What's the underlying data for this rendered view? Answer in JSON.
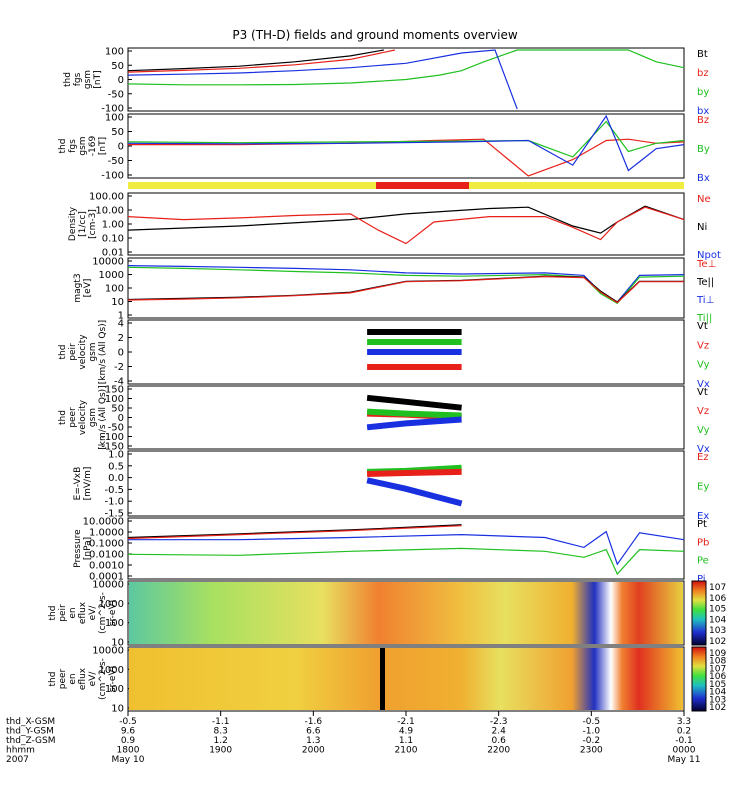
{
  "title": "P3 (TH-D) fields and ground moments overview",
  "colors": {
    "black": "#000000",
    "red": "#e8201a",
    "green": "#20c020",
    "blue": "#1830e0",
    "yellow": "#f0ec40"
  },
  "chart_data": [
    {
      "id": "fgs",
      "type": "line",
      "ylabel": [
        "thd",
        "fgs",
        "gsm",
        "[nT]"
      ],
      "yticks": [
        "100",
        "50",
        "0",
        "-50",
        "-100"
      ],
      "ylim": [
        -100,
        100
      ],
      "legend": [
        {
          "label": "Bt",
          "color": "black"
        },
        {
          "label": "bz",
          "color": "red"
        },
        {
          "label": "by",
          "color": "green"
        },
        {
          "label": "bx",
          "color": "blue"
        }
      ],
      "series": [
        {
          "name": "Bt",
          "color": "black",
          "x": [
            0,
            0.1,
            0.2,
            0.3,
            0.4,
            0.46
          ],
          "y": [
            30,
            37,
            45,
            60,
            80,
            100
          ]
        },
        {
          "name": "bz",
          "color": "red",
          "x": [
            0,
            0.1,
            0.2,
            0.3,
            0.4,
            0.48
          ],
          "y": [
            25,
            31,
            38,
            50,
            68,
            100
          ]
        },
        {
          "name": "by",
          "color": "green",
          "x": [
            0,
            0.1,
            0.2,
            0.3,
            0.4,
            0.5,
            0.56,
            0.6,
            0.64,
            0.7,
            0.75,
            0.8,
            0.9,
            0.95,
            1.0
          ],
          "y": [
            -15,
            -18,
            -18,
            -17,
            -12,
            0,
            15,
            30,
            60,
            100,
            100,
            100,
            100,
            60,
            40
          ]
        },
        {
          "name": "bx",
          "color": "blue",
          "x": [
            0,
            0.1,
            0.2,
            0.3,
            0.4,
            0.5,
            0.6,
            0.66,
            0.7
          ],
          "y": [
            15,
            18,
            22,
            30,
            40,
            55,
            90,
            100,
            -100
          ]
        }
      ]
    },
    {
      "id": "fgs169",
      "type": "line",
      "ylabel": [
        "thd",
        "fgs",
        "gsm",
        "-169",
        "[nT]"
      ],
      "yticks": [
        "100",
        "50",
        "0",
        "-50",
        "-100"
      ],
      "ylim": [
        -120,
        100
      ],
      "legend": [
        {
          "label": "Bz",
          "color": "red"
        },
        {
          "label": "By",
          "color": "green"
        },
        {
          "label": "Bx",
          "color": "blue"
        }
      ],
      "series": [
        {
          "name": "Bz",
          "color": "red",
          "x": [
            0,
            0.2,
            0.4,
            0.55,
            0.64,
            0.72,
            0.8,
            0.86,
            0.9,
            0.95,
            1.0
          ],
          "y": [
            -5,
            -5,
            0,
            10,
            15,
            -120,
            -60,
            10,
            15,
            0,
            5
          ]
        },
        {
          "name": "By",
          "color": "green",
          "x": [
            0,
            0.2,
            0.4,
            0.6,
            0.72,
            0.8,
            0.86,
            0.9,
            0.95,
            1.0
          ],
          "y": [
            5,
            2,
            5,
            8,
            10,
            -50,
            80,
            -30,
            0,
            10
          ]
        },
        {
          "name": "Bx",
          "color": "blue",
          "x": [
            0,
            0.2,
            0.4,
            0.6,
            0.72,
            0.8,
            0.86,
            0.9,
            0.95,
            1.0
          ],
          "y": [
            0,
            -2,
            0,
            5,
            10,
            -80,
            100,
            -100,
            -20,
            -5
          ]
        }
      ]
    },
    {
      "id": "density",
      "type": "line",
      "log": true,
      "ylabel": [
        "Density",
        "[1/cc]",
        "[cm-3]"
      ],
      "yticks": [
        "100.00",
        "10.00",
        "1.00",
        "0.10",
        "0.01"
      ],
      "ylim": [
        0.01,
        200
      ],
      "legend": [
        {
          "label": "Ne",
          "color": "red"
        },
        {
          "label": "Ni",
          "color": "black"
        },
        {
          "label": "Npot",
          "color": "blue"
        }
      ],
      "series": [
        {
          "name": "Ni",
          "color": "black",
          "x": [
            0,
            0.2,
            0.4,
            0.5,
            0.65,
            0.72,
            0.8,
            0.85,
            0.88,
            0.93,
            1.0
          ],
          "y": [
            0.5,
            1.0,
            3,
            8,
            20,
            25,
            1.0,
            0.3,
            2,
            30,
            3
          ]
        },
        {
          "name": "Ne",
          "color": "red",
          "x": [
            0,
            0.1,
            0.2,
            0.3,
            0.4,
            0.45,
            0.5,
            0.55,
            0.65,
            0.75,
            0.8,
            0.85,
            0.88,
            0.93,
            1.0
          ],
          "y": [
            5,
            3,
            4,
            6,
            8,
            0.5,
            0.05,
            2,
            5,
            5,
            0.8,
            0.1,
            2,
            25,
            3
          ]
        }
      ]
    },
    {
      "id": "temp",
      "type": "line",
      "log": true,
      "ylabel": [
        "magt3",
        "[eV]"
      ],
      "yticks": [
        "10000",
        "1000",
        "100",
        "10",
        "1"
      ],
      "ylim": [
        1,
        10000
      ],
      "legend": [
        {
          "label": "Te⊥",
          "color": "red"
        },
        {
          "label": "Te||",
          "color": "black"
        },
        {
          "label": "Ti⊥",
          "color": "blue"
        },
        {
          "label": "Ti||",
          "color": "green"
        }
      ],
      "series": [
        {
          "name": "Ti⊥",
          "color": "blue",
          "x": [
            0,
            0.1,
            0.2,
            0.3,
            0.4,
            0.5,
            0.6,
            0.75,
            0.82,
            0.85,
            0.88,
            0.92,
            1.0
          ],
          "y": [
            4000,
            3500,
            3000,
            2500,
            2000,
            1200,
            1000,
            1200,
            800,
            50,
            10,
            800,
            900
          ]
        },
        {
          "name": "Ti||",
          "color": "green",
          "x": [
            0,
            0.1,
            0.2,
            0.3,
            0.4,
            0.5,
            0.6,
            0.75,
            0.82,
            0.85,
            0.88,
            0.92,
            1.0
          ],
          "y": [
            3000,
            2500,
            2000,
            1500,
            1200,
            800,
            700,
            900,
            600,
            40,
            8,
            600,
            700
          ]
        },
        {
          "name": "Te||",
          "color": "black",
          "x": [
            0,
            0.1,
            0.2,
            0.3,
            0.4,
            0.5,
            0.6,
            0.75,
            0.82,
            0.85,
            0.88,
            0.92,
            1.0
          ],
          "y": [
            15,
            18,
            22,
            30,
            50,
            300,
            350,
            700,
            600,
            60,
            10,
            300,
            300
          ]
        },
        {
          "name": "Te⊥",
          "color": "red",
          "x": [
            0,
            0.1,
            0.2,
            0.3,
            0.4,
            0.5,
            0.6,
            0.75,
            0.82,
            0.85,
            0.88,
            0.92,
            1.0
          ],
          "y": [
            14,
            16,
            20,
            28,
            45,
            280,
            330,
            650,
            550,
            50,
            9,
            280,
            280
          ]
        }
      ]
    },
    {
      "id": "peir",
      "type": "line",
      "ylabel": [
        "thd",
        "peir",
        "velocity",
        "gsm",
        "[km/s (All Qs)]"
      ],
      "yticks": [
        "4",
        "2",
        "0",
        "-2",
        "-4"
      ],
      "ylim": [
        -6,
        6
      ],
      "legend": [
        {
          "label": "Vt",
          "color": "black"
        },
        {
          "label": "Vz",
          "color": "red"
        },
        {
          "label": "Vy",
          "color": "green"
        },
        {
          "label": "Vx",
          "color": "blue"
        }
      ],
      "series": [
        {
          "name": "Vt",
          "color": "black",
          "x": [
            0.43,
            0.6
          ],
          "y": [
            4,
            4
          ]
        },
        {
          "name": "Vy",
          "color": "green",
          "x": [
            0.43,
            0.6
          ],
          "y": [
            2,
            2
          ]
        },
        {
          "name": "Vx",
          "color": "blue",
          "x": [
            0.43,
            0.6
          ],
          "y": [
            0,
            0
          ]
        },
        {
          "name": "Vz",
          "color": "red",
          "x": [
            0.43,
            0.6
          ],
          "y": [
            -3,
            -3
          ]
        }
      ]
    },
    {
      "id": "peer",
      "type": "line",
      "ylabel": [
        "thd",
        "peer",
        "velocity",
        "gsm",
        "[km/s (All Qs)]"
      ],
      "yticks": [
        "150",
        "100",
        "50",
        "0",
        "-50",
        "-100",
        "-150"
      ],
      "ylim": [
        -150,
        150
      ],
      "legend": [
        {
          "label": "Vt",
          "color": "black"
        },
        {
          "label": "Vz",
          "color": "red"
        },
        {
          "label": "Vy",
          "color": "green"
        },
        {
          "label": "Vx",
          "color": "blue"
        }
      ],
      "series": [
        {
          "name": "Vt",
          "color": "black",
          "x": [
            0.43,
            0.5,
            0.6
          ],
          "y": [
            100,
            80,
            50
          ]
        },
        {
          "name": "Vz",
          "color": "red",
          "x": [
            0.43,
            0.5,
            0.6
          ],
          "y": [
            20,
            15,
            0
          ]
        },
        {
          "name": "Vy",
          "color": "green",
          "x": [
            0.43,
            0.5,
            0.6
          ],
          "y": [
            30,
            20,
            10
          ]
        },
        {
          "name": "Vx",
          "color": "blue",
          "x": [
            0.43,
            0.5,
            0.6
          ],
          "y": [
            -50,
            -30,
            -10
          ]
        }
      ]
    },
    {
      "id": "efield",
      "type": "line",
      "ylabel": [
        "E=-VxB",
        "[mV/m]"
      ],
      "yticks": [
        "1.0",
        "0.5",
        "0.0",
        "-0.5",
        "-1.0",
        "-1.5"
      ],
      "ylim": [
        -1.7,
        1.2
      ],
      "legend": [
        {
          "label": "Ez",
          "color": "red"
        },
        {
          "label": "Ey",
          "color": "green"
        },
        {
          "label": "Ex",
          "color": "blue"
        }
      ],
      "series": [
        {
          "name": "Ey",
          "color": "green",
          "x": [
            0.43,
            0.5,
            0.6
          ],
          "y": [
            0.3,
            0.35,
            0.5
          ]
        },
        {
          "name": "Ez",
          "color": "red",
          "x": [
            0.43,
            0.5,
            0.6
          ],
          "y": [
            0.2,
            0.25,
            0.3
          ]
        },
        {
          "name": "Ex",
          "color": "blue",
          "x": [
            0.43,
            0.5,
            0.6
          ],
          "y": [
            -0.1,
            -0.5,
            -1.2
          ]
        }
      ]
    },
    {
      "id": "pressure",
      "type": "line",
      "log": true,
      "ylabel": [
        "Pressure",
        "[nPa]"
      ],
      "yticks": [
        "10.0000",
        "1.0000",
        "0.1000",
        "0.0100",
        "0.0010",
        "0.0001"
      ],
      "ylim": [
        5e-05,
        30
      ],
      "legend": [
        {
          "label": "Pt",
          "color": "black"
        },
        {
          "label": "Pb",
          "color": "red"
        },
        {
          "label": "Pe",
          "color": "green"
        },
        {
          "label": "Pi",
          "color": "blue"
        }
      ],
      "series": [
        {
          "name": "Pt",
          "color": "black",
          "x": [
            0,
            0.2,
            0.4,
            0.6
          ],
          "y": [
            0.5,
            1.2,
            3,
            10
          ]
        },
        {
          "name": "Pb",
          "color": "red",
          "x": [
            0,
            0.2,
            0.4,
            0.6
          ],
          "y": [
            0.4,
            1,
            2.5,
            8
          ]
        },
        {
          "name": "Pi",
          "color": "blue",
          "x": [
            0,
            0.2,
            0.4,
            0.6,
            0.75,
            0.82,
            0.86,
            0.88,
            0.92,
            1.0
          ],
          "y": [
            0.3,
            0.3,
            0.5,
            1,
            0.5,
            0.05,
            2,
            0.001,
            1.5,
            0.3
          ]
        },
        {
          "name": "Pe",
          "color": "green",
          "x": [
            0,
            0.2,
            0.4,
            0.6,
            0.75,
            0.82,
            0.86,
            0.88,
            0.92,
            1.0
          ],
          "y": [
            0.01,
            0.008,
            0.02,
            0.04,
            0.02,
            0.005,
            0.03,
            0.0001,
            0.03,
            0.02
          ]
        }
      ]
    },
    {
      "id": "peir_spec",
      "type": "heatmap",
      "ylabel": [
        "thd",
        "peir",
        "en",
        "eflux",
        "eV/",
        "(cm^2-s-",
        "sr-eV)"
      ],
      "yticks": [
        "10000",
        "1000",
        "100",
        "10"
      ],
      "colorbar": [
        "10^7",
        "10^6",
        "10^5",
        "10^4",
        "10^3",
        "10^2"
      ]
    },
    {
      "id": "peer_spec",
      "type": "heatmap",
      "ylabel": [
        "thd",
        "peer",
        "en",
        "eflux",
        "eV/",
        "(cm^2-s-",
        "sr-eV)"
      ],
      "yticks": [
        "10000",
        "1000",
        "100",
        "10"
      ],
      "colorbar": [
        "10^9",
        "10^8",
        "10^7",
        "10^6",
        "10^5",
        "10^4",
        "10^3",
        "10^2"
      ]
    }
  ],
  "xaxis": {
    "row_labels": [
      "thd_X-GSM",
      "thd_Y-GSM",
      "thd_Z-GSM",
      "hhmm",
      "2007"
    ],
    "columns": [
      {
        "vals": [
          "-0.5",
          "9.6",
          "0.9",
          "1800",
          "May 10"
        ]
      },
      {
        "vals": [
          "-1.1",
          "8.3",
          "1.2",
          "1900",
          ""
        ]
      },
      {
        "vals": [
          "-1.6",
          "6.6",
          "1.3",
          "2000",
          ""
        ]
      },
      {
        "vals": [
          "-2.1",
          "4.9",
          "1.1",
          "2100",
          ""
        ]
      },
      {
        "vals": [
          "-2.3",
          "2.4",
          "0.6",
          "2200",
          ""
        ]
      },
      {
        "vals": [
          "-0.5",
          "-1.0",
          "-0.2",
          "2300",
          ""
        ]
      },
      {
        "vals": [
          "3.3",
          "0.2",
          "-0.1",
          "0000",
          "May 11"
        ]
      }
    ]
  }
}
